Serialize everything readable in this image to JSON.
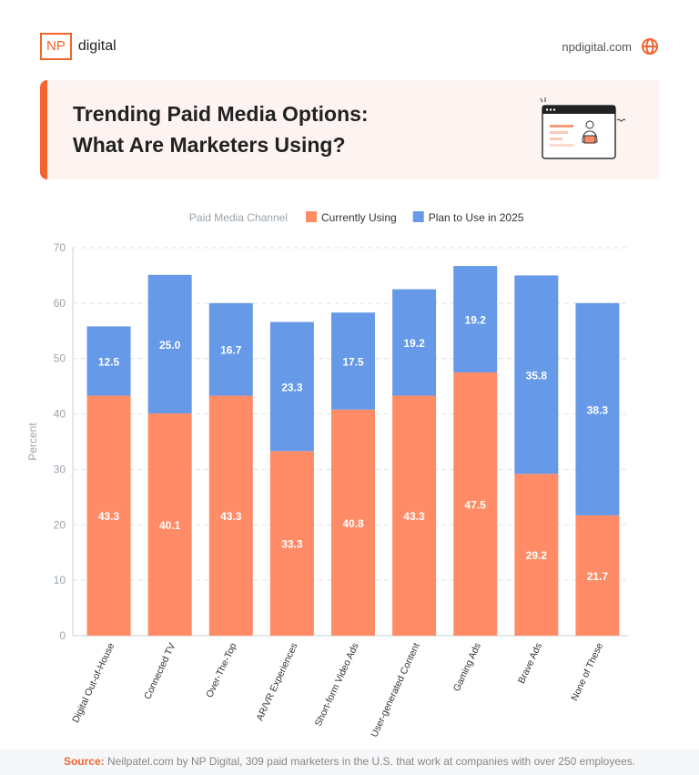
{
  "header": {
    "logo_mark": "NP",
    "logo_text": "digital",
    "site": "npdigital.com",
    "site_icon": "globe-icon"
  },
  "banner": {
    "title_line1": "Trending Paid Media Options:",
    "title_line2": "What Are Marketers Using?",
    "illustration": "laptop-user-icon"
  },
  "chart_data": {
    "type": "bar",
    "stacked": true,
    "categories": [
      "Digital Out-of-House",
      "Connected TV",
      "Over-The-Top",
      "AR/VR Experiences",
      "Short-form Video Ads",
      "User-generated Content",
      "Gaming Ads",
      "Brave Ads",
      "None of These"
    ],
    "legend_title": "Paid Media Channel",
    "legend_position": "top",
    "series": [
      {
        "name": "Currently Using",
        "color": "#ff8c66",
        "values": [
          43.3,
          40.1,
          43.3,
          33.3,
          40.8,
          43.3,
          47.5,
          29.2,
          21.7
        ]
      },
      {
        "name": "Plan to Use in 2025",
        "color": "#6699e8",
        "values": [
          12.5,
          25.0,
          16.7,
          23.3,
          17.5,
          19.2,
          19.2,
          35.8,
          38.3
        ]
      }
    ],
    "ylabel": "Percent",
    "ylim": [
      0,
      70
    ],
    "yticks": [
      0,
      10,
      20,
      30,
      40,
      50,
      60,
      70
    ],
    "grid": true
  },
  "footer": {
    "source_label": "Source:",
    "source_text": " Neilpatel.com by NP Digital, 309 paid marketers in the U.S. that work at companies with over 250 employees."
  }
}
